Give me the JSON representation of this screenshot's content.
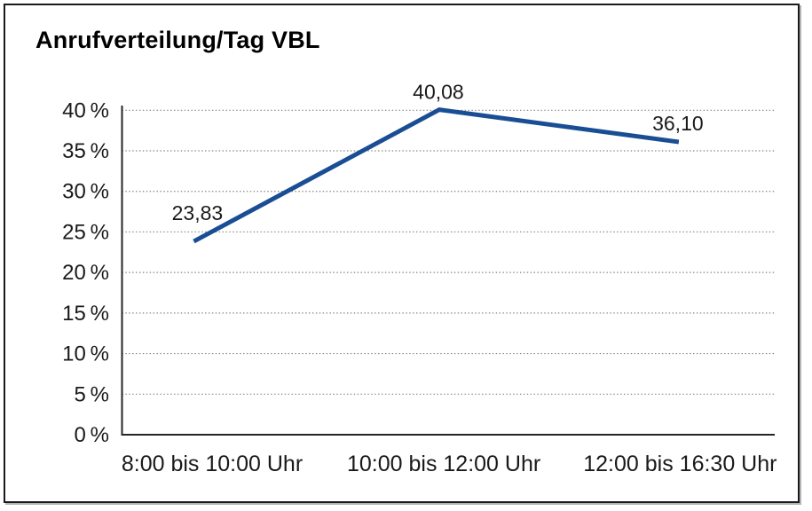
{
  "window": {
    "background": "#ffffff",
    "frame_border_color": "#1a1a1a"
  },
  "chart_data": {
    "type": "line",
    "title": "Anrufverteilung/Tag VBL",
    "categories": [
      "8:00 bis 10:00 Uhr",
      "10:00 bis 12:00 Uhr",
      "12:00 bis 16:30 Uhr"
    ],
    "values": [
      23.83,
      40.08,
      36.1
    ],
    "data_labels": [
      "23,83",
      "40,08",
      "36,10"
    ],
    "xlabel": "",
    "ylabel": "",
    "ylim": [
      0,
      40
    ],
    "y_ticks": [
      0,
      5,
      10,
      15,
      20,
      25,
      30,
      35,
      40
    ],
    "y_tick_labels": [
      "0 %",
      "5 %",
      "10 %",
      "15 %",
      "20 %",
      "25 %",
      "30 %",
      "35 %",
      "40 %"
    ],
    "grid": "horizontal dotted",
    "legend": "none",
    "line_color": "#1a4e94",
    "grid_color": "#808080",
    "axis_color": "#262626",
    "text_color": "#1a1a1a"
  }
}
